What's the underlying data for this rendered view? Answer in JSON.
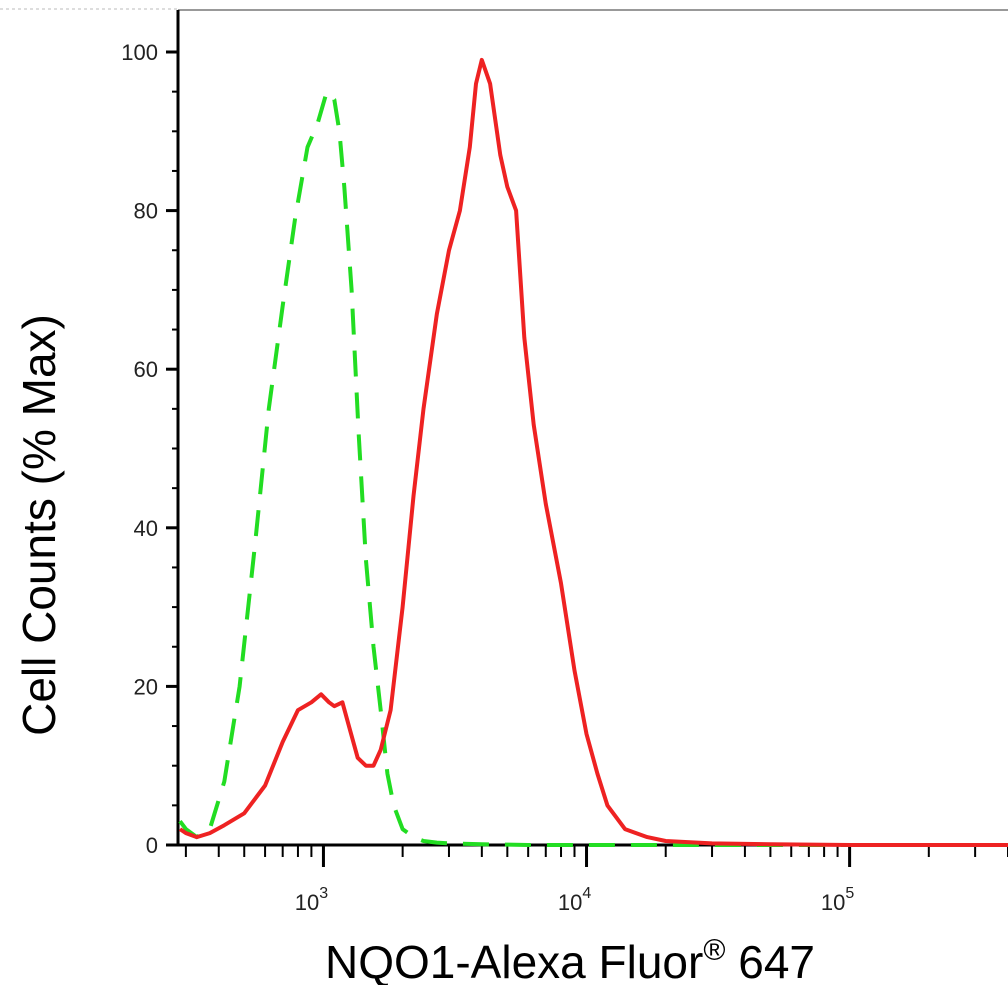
{
  "chart_data": {
    "type": "area",
    "title": "",
    "xlabel": "NQO1-Alexa Fluor",
    "xlabel_superscript": "®",
    "xlabel_suffix": " 647",
    "ylabel": "Cell Counts (% Max)",
    "x_scale": "log",
    "xlim": [
      280,
      400000
    ],
    "ylim": [
      0,
      100
    ],
    "y_ticks": [
      "0",
      "20",
      "40",
      "60",
      "80",
      "100"
    ],
    "x_tick_labels": [
      {
        "base": "10",
        "exp": "3",
        "value": 1000
      },
      {
        "base": "10",
        "exp": "4",
        "value": 10000
      },
      {
        "base": "10",
        "exp": "5",
        "value": 100000
      }
    ],
    "grid": false,
    "legend": "none",
    "series": [
      {
        "style": "dashed",
        "color": "#22dd22",
        "x": [
          285,
          300,
          330,
          370,
          420,
          480,
          550,
          620,
          700,
          780,
          870,
          950,
          1030,
          1100,
          1150,
          1200,
          1280,
          1360,
          1450,
          1550,
          1650,
          1750,
          1850,
          2000,
          2200,
          2400,
          2700,
          3000,
          4000,
          6000,
          10000,
          20000,
          50000,
          100000,
          400000
        ],
        "y": [
          3,
          2,
          1,
          2,
          8,
          20,
          38,
          55,
          68,
          79,
          88,
          91,
          95,
          94,
          90,
          83,
          70,
          52,
          36,
          25,
          17,
          9,
          5,
          2,
          1,
          0.5,
          0.3,
          0.2,
          0.1,
          0,
          0,
          0,
          0,
          0,
          0
        ]
      },
      {
        "style": "solid",
        "color": "#ee2222",
        "x": [
          285,
          300,
          330,
          370,
          420,
          500,
          600,
          700,
          800,
          900,
          980,
          1050,
          1100,
          1180,
          1250,
          1350,
          1450,
          1550,
          1650,
          1800,
          2000,
          2200,
          2400,
          2700,
          3000,
          3300,
          3600,
          3800,
          4000,
          4300,
          4700,
          5000,
          5400,
          5800,
          6300,
          7000,
          8000,
          9000,
          10000,
          11000,
          12000,
          14000,
          17000,
          20000,
          30000,
          50000,
          100000,
          400000
        ],
        "y": [
          2,
          1.5,
          1,
          1.5,
          2.5,
          4,
          7.5,
          13,
          17,
          18,
          19,
          18,
          17.5,
          18,
          15,
          11,
          10,
          10,
          12,
          17,
          30,
          44,
          55,
          67,
          75,
          80,
          88,
          96,
          99,
          96,
          87,
          83,
          80,
          64,
          53,
          43,
          33,
          22,
          14,
          9,
          5,
          2,
          1,
          0.5,
          0.2,
          0.1,
          0,
          0
        ]
      }
    ]
  }
}
